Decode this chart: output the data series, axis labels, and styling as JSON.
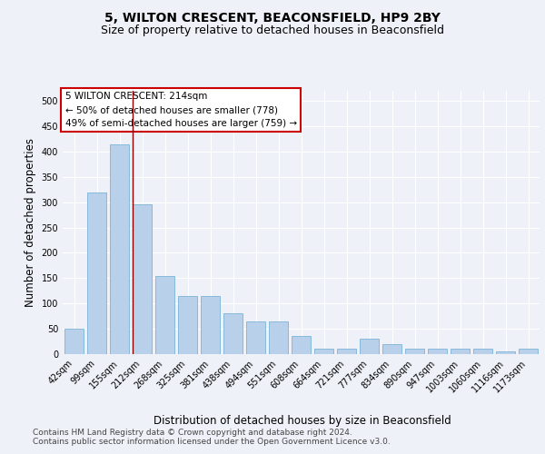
{
  "title_line1": "5, WILTON CRESCENT, BEACONSFIELD, HP9 2BY",
  "title_line2": "Size of property relative to detached houses in Beaconsfield",
  "xlabel": "Distribution of detached houses by size in Beaconsfield",
  "ylabel": "Number of detached properties",
  "categories": [
    "42sqm",
    "99sqm",
    "155sqm",
    "212sqm",
    "268sqm",
    "325sqm",
    "381sqm",
    "438sqm",
    "494sqm",
    "551sqm",
    "608sqm",
    "664sqm",
    "721sqm",
    "777sqm",
    "834sqm",
    "890sqm",
    "947sqm",
    "1003sqm",
    "1060sqm",
    "1116sqm",
    "1173sqm"
  ],
  "values": [
    50,
    320,
    415,
    295,
    155,
    115,
    115,
    80,
    65,
    65,
    35,
    10,
    10,
    30,
    20,
    10,
    10,
    10,
    10,
    5,
    10
  ],
  "bar_color": "#b8d0ea",
  "bar_edge_color": "#6aaad4",
  "vline_color": "#8b0000",
  "vline_pos": 2.57,
  "annotation_box_text": "5 WILTON CRESCENT: 214sqm\n← 50% of detached houses are smaller (778)\n49% of semi-detached houses are larger (759) →",
  "annotation_box_color": "#ffffff",
  "annotation_box_edge_color": "#cc0000",
  "ylim": [
    0,
    520
  ],
  "yticks": [
    0,
    50,
    100,
    150,
    200,
    250,
    300,
    350,
    400,
    450,
    500
  ],
  "footer_line1": "Contains HM Land Registry data © Crown copyright and database right 2024.",
  "footer_line2": "Contains public sector information licensed under the Open Government Licence v3.0.",
  "bg_color": "#eef2f8",
  "plot_bg_color": "#eef2f8",
  "title_fontsize": 10,
  "subtitle_fontsize": 9,
  "axis_label_fontsize": 8.5,
  "tick_fontsize": 7,
  "footer_fontsize": 6.5,
  "annotation_fontsize": 7.5
}
